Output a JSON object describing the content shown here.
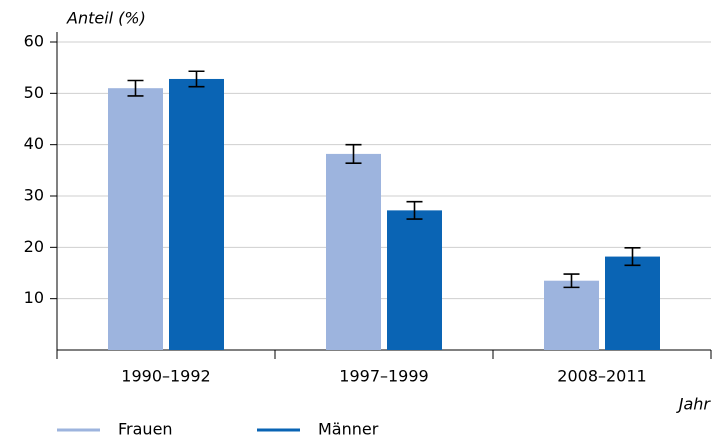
{
  "chart_data": {
    "type": "bar",
    "y_label": "Anteil (%)",
    "x_label": "Jahr",
    "categories": [
      "1990–1992",
      "1997–1999",
      "2008–2011"
    ],
    "series": [
      {
        "name": "Frauen",
        "color": "#9db4de",
        "values": [
          51.0,
          38.2,
          13.5
        ],
        "errors": [
          1.5,
          1.8,
          1.3
        ]
      },
      {
        "name": "Männer",
        "color": "#0a64b4",
        "values": [
          52.8,
          27.2,
          18.2
        ],
        "errors": [
          1.5,
          1.7,
          1.7
        ]
      }
    ],
    "ylim": [
      0,
      60
    ],
    "yticks": [
      10,
      20,
      30,
      40,
      50,
      60
    ],
    "grid": true
  }
}
